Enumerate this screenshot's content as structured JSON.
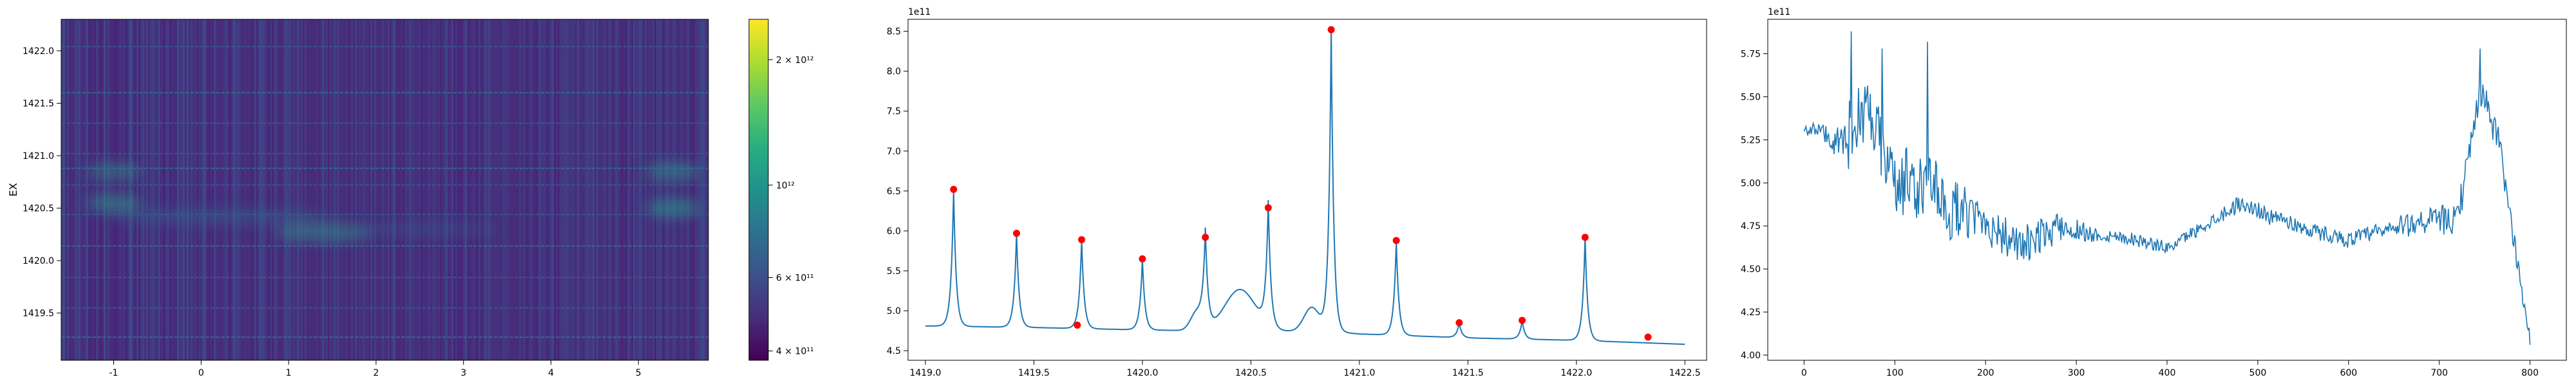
{
  "chart_data": [
    {
      "type": "heatmap",
      "title": "",
      "xlabel": "",
      "ylabel": "EX",
      "xlim": [
        -1.6,
        5.8
      ],
      "ylim": [
        1419.05,
        1422.3
      ],
      "xticks": [
        -1,
        0,
        1,
        2,
        3,
        4,
        5
      ],
      "yticks": [
        1419.5,
        1420.0,
        1420.5,
        1421.0,
        1421.5,
        1422.0
      ],
      "ytick_labels": [
        "1419.5",
        "1420.0",
        "1420.5",
        "1421.0",
        "1421.5",
        "1422.0"
      ],
      "colorbar": {
        "scale": "log",
        "colormap": "viridis",
        "range": [
          380000000000,
          2500000000000
        ],
        "ticks": [
          {
            "value": 400000000000,
            "label": "4 × 10¹¹"
          },
          {
            "value": 600000000000,
            "label": "6 × 10¹¹"
          },
          {
            "value": 1000000000000,
            "label": "10¹²"
          },
          {
            "value": 2000000000000,
            "label": "2 × 10¹²"
          }
        ]
      },
      "horizontal_lines_y": [
        1419.27,
        1419.55,
        1419.84,
        1420.14,
        1420.44,
        1420.72,
        1420.88,
        1421.02,
        1421.31,
        1421.6,
        1422.04
      ],
      "blobs": [
        {
          "x": -1.0,
          "y": 1420.55,
          "intensity": 0.55
        },
        {
          "x": -1.0,
          "y": 1420.85,
          "intensity": 0.45
        },
        {
          "x": 1.4,
          "y": 1420.27,
          "intensity": 0.5
        },
        {
          "x": 5.4,
          "y": 1420.5,
          "intensity": 0.6
        },
        {
          "x": 5.4,
          "y": 1420.85,
          "intensity": 0.5
        }
      ]
    },
    {
      "type": "line",
      "title": "",
      "xlabel": "",
      "ylabel": "",
      "offset_label": "1e11",
      "xlim": [
        1418.92,
        1422.6
      ],
      "ylim": [
        4.38,
        8.65
      ],
      "xticks": [
        1419.0,
        1419.5,
        1420.0,
        1420.5,
        1421.0,
        1421.5,
        1422.0,
        1422.5
      ],
      "xtick_labels": [
        "1419.0",
        "1419.5",
        "1420.0",
        "1420.5",
        "1421.0",
        "1421.5",
        "1422.0",
        "1422.5"
      ],
      "yticks": [
        4.5,
        5.0,
        5.5,
        6.0,
        6.5,
        7.0,
        7.5,
        8.0,
        8.5
      ],
      "ytick_labels": [
        "4.5",
        "5.0",
        "5.5",
        "6.0",
        "6.5",
        "7.0",
        "7.5",
        "8.0",
        "8.5"
      ],
      "line_color": "#1f77b4",
      "marker_color": "#ff0000",
      "baseline": [
        {
          "x": 1419.0,
          "y": 4.81
        },
        {
          "x": 1419.5,
          "y": 4.79
        },
        {
          "x": 1420.0,
          "y": 4.76
        },
        {
          "x": 1420.25,
          "y": 4.75
        },
        {
          "x": 1420.85,
          "y": 4.74
        },
        {
          "x": 1421.0,
          "y": 4.71
        },
        {
          "x": 1421.5,
          "y": 4.66
        },
        {
          "x": 1422.0,
          "y": 4.63
        },
        {
          "x": 1422.5,
          "y": 4.58
        }
      ],
      "bumps": [
        {
          "x": 1420.45,
          "amp": 0.52,
          "width": 0.1
        },
        {
          "x": 1420.25,
          "amp": 0.22,
          "width": 0.04
        },
        {
          "x": 1420.78,
          "amp": 0.3,
          "width": 0.05
        }
      ],
      "peaks": [
        {
          "x": 1419.13,
          "y": 6.52
        },
        {
          "x": 1419.42,
          "y": 5.97
        },
        {
          "x": 1419.72,
          "y": 5.89
        },
        {
          "x": 1420.0,
          "y": 5.65
        },
        {
          "x": 1420.29,
          "y": 5.92
        },
        {
          "x": 1420.58,
          "y": 6.29
        },
        {
          "x": 1420.87,
          "y": 8.52
        },
        {
          "x": 1421.17,
          "y": 5.88
        },
        {
          "x": 1421.46,
          "y": 4.85
        },
        {
          "x": 1421.75,
          "y": 4.88
        },
        {
          "x": 1422.04,
          "y": 5.92
        }
      ],
      "extra_markers": [
        {
          "x": 1419.7,
          "y": 4.82
        },
        {
          "x": 1422.33,
          "y": 4.67
        }
      ]
    },
    {
      "type": "line",
      "title": "",
      "xlabel": "",
      "ylabel": "",
      "offset_label": "1e11",
      "xlim": [
        -40,
        840
      ],
      "ylim": [
        3.97,
        5.95
      ],
      "xticks": [
        0,
        100,
        200,
        300,
        400,
        500,
        600,
        700,
        800
      ],
      "xtick_labels": [
        "0",
        "100",
        "200",
        "300",
        "400",
        "500",
        "600",
        "700",
        "800"
      ],
      "yticks": [
        4.0,
        4.25,
        4.5,
        4.75,
        5.0,
        5.25,
        5.5,
        5.75
      ],
      "ytick_labels": [
        "4.00",
        "4.25",
        "4.50",
        "4.75",
        "5.00",
        "5.25",
        "5.50",
        "5.75"
      ],
      "line_color": "#1f77b4",
      "trend": [
        {
          "x": 0,
          "y": 5.32
        },
        {
          "x": 20,
          "y": 5.3
        },
        {
          "x": 40,
          "y": 5.2
        },
        {
          "x": 60,
          "y": 5.4
        },
        {
          "x": 80,
          "y": 5.3
        },
        {
          "x": 100,
          "y": 5.0
        },
        {
          "x": 120,
          "y": 5.0
        },
        {
          "x": 140,
          "y": 4.95
        },
        {
          "x": 160,
          "y": 4.85
        },
        {
          "x": 200,
          "y": 4.78
        },
        {
          "x": 240,
          "y": 4.62
        },
        {
          "x": 280,
          "y": 4.75
        },
        {
          "x": 320,
          "y": 4.7
        },
        {
          "x": 360,
          "y": 4.68
        },
        {
          "x": 400,
          "y": 4.62
        },
        {
          "x": 440,
          "y": 4.75
        },
        {
          "x": 480,
          "y": 4.88
        },
        {
          "x": 520,
          "y": 4.8
        },
        {
          "x": 560,
          "y": 4.72
        },
        {
          "x": 600,
          "y": 4.67
        },
        {
          "x": 640,
          "y": 4.72
        },
        {
          "x": 680,
          "y": 4.78
        },
        {
          "x": 720,
          "y": 4.78
        },
        {
          "x": 745,
          "y": 5.55
        },
        {
          "x": 765,
          "y": 5.25
        },
        {
          "x": 780,
          "y": 4.75
        },
        {
          "x": 790,
          "y": 4.4
        },
        {
          "x": 800,
          "y": 4.1
        }
      ],
      "noise_amplitude": [
        {
          "x": 0,
          "a": 0.04
        },
        {
          "x": 30,
          "a": 0.08
        },
        {
          "x": 50,
          "a": 0.22
        },
        {
          "x": 140,
          "a": 0.26
        },
        {
          "x": 180,
          "a": 0.16
        },
        {
          "x": 260,
          "a": 0.12
        },
        {
          "x": 330,
          "a": 0.05
        },
        {
          "x": 420,
          "a": 0.04
        },
        {
          "x": 500,
          "a": 0.06
        },
        {
          "x": 600,
          "a": 0.05
        },
        {
          "x": 700,
          "a": 0.1
        },
        {
          "x": 760,
          "a": 0.12
        },
        {
          "x": 800,
          "a": 0.04
        }
      ],
      "spikes": [
        {
          "x": 52,
          "y": 5.88
        },
        {
          "x": 86,
          "y": 5.78
        },
        {
          "x": 136,
          "y": 5.82
        },
        {
          "x": 745,
          "y": 5.78
        },
        {
          "x": 800,
          "y": 4.06
        }
      ]
    }
  ]
}
